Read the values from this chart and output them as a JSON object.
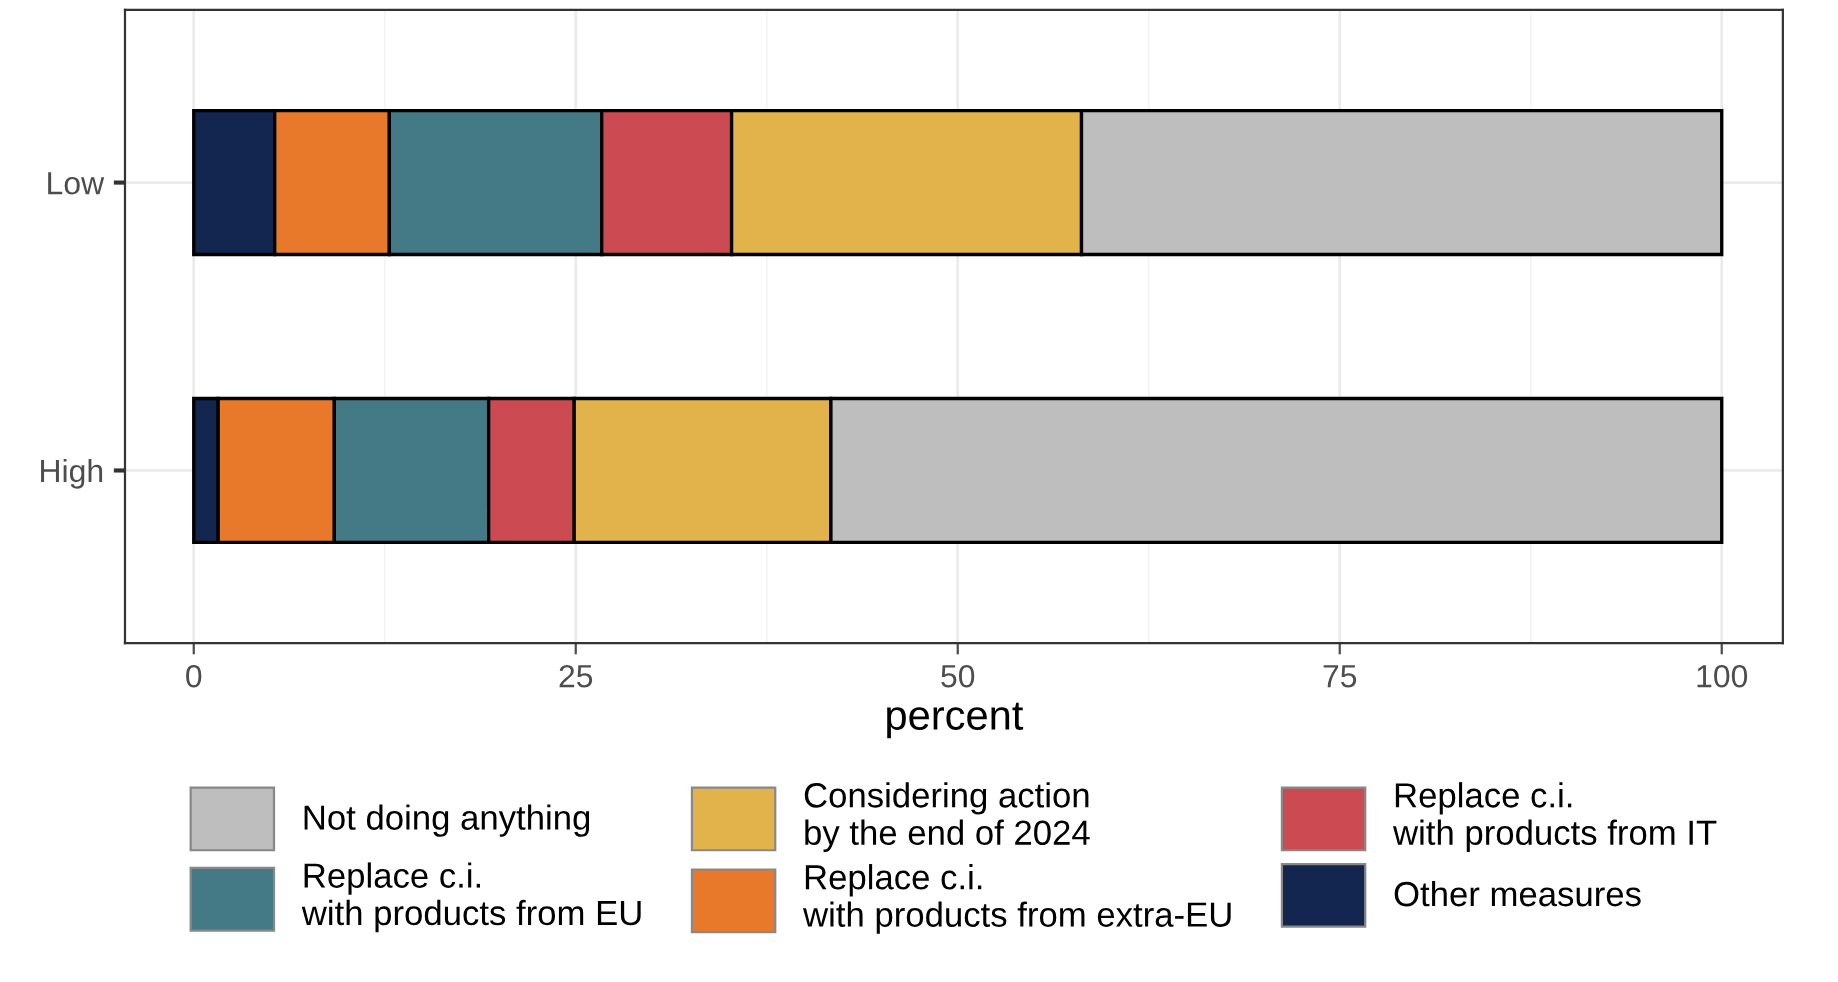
{
  "chart_data": {
    "type": "bar",
    "orientation": "horizontal",
    "stacked": true,
    "xlabel": "percent",
    "categories": [
      "Low",
      "High"
    ],
    "series": [
      {
        "name": "Other measures",
        "color": "#12264f",
        "values": [
          5.3,
          1.6
        ]
      },
      {
        "name": "Replace c.i.\nwith products from extra-EU",
        "color": "#e8792b",
        "values": [
          7.5,
          7.6
        ]
      },
      {
        "name": "Replace c.i.\nwith products from EU",
        "color": "#447a86",
        "values": [
          13.9,
          10.1
        ]
      },
      {
        "name": "Replace c.i.\nwith products from IT",
        "color": "#cc4a51",
        "values": [
          8.5,
          5.6
        ]
      },
      {
        "name": "Considering action\nby the end of 2024",
        "color": "#e3b34b",
        "values": [
          22.9,
          16.8
        ]
      },
      {
        "name": "Not doing anything",
        "color": "#bebebe",
        "values": [
          41.9,
          58.3
        ]
      }
    ],
    "xlim": [
      -4.5,
      104
    ],
    "xticks": [
      0,
      25,
      50,
      75,
      100
    ],
    "grid": true,
    "legend": "bottom"
  }
}
